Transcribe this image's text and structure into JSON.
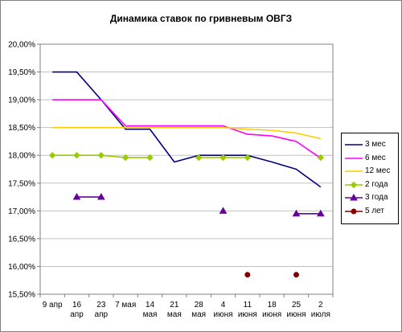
{
  "chart_data": {
    "type": "line",
    "title": "Динамика ставок по гривневым ОВГЗ",
    "xlabel": "",
    "ylabel": "",
    "ylim": [
      15.5,
      20.0
    ],
    "y_ticks": [
      "15,50%",
      "16,00%",
      "16,50%",
      "17,00%",
      "17,50%",
      "18,00%",
      "18,50%",
      "19,00%",
      "19,50%",
      "20,00%"
    ],
    "y_tick_values": [
      15.5,
      16.0,
      16.5,
      17.0,
      17.5,
      18.0,
      18.5,
      19.0,
      19.5,
      20.0
    ],
    "categories": [
      "9 апр",
      "16 апр",
      "23 апр",
      "7 мая",
      "14 мая",
      "21 мая",
      "28 мая",
      "4 июня",
      "11 июня",
      "18 июня",
      "25 июня",
      "2 июля"
    ],
    "category_lines": [
      [
        "9 апр"
      ],
      [
        "16",
        "апр"
      ],
      [
        "23",
        "апр"
      ],
      [
        "7 мая"
      ],
      [
        "14",
        "мая"
      ],
      [
        "21",
        "мая"
      ],
      [
        "28",
        "мая"
      ],
      [
        "4",
        "июня"
      ],
      [
        "11",
        "июня"
      ],
      [
        "18",
        "июня"
      ],
      [
        "25",
        "июня"
      ],
      [
        "2",
        "июля"
      ]
    ],
    "grid": "horizontal",
    "legend_position": "right",
    "series": [
      {
        "name": "3 мес",
        "color": "#000080",
        "marker": "none",
        "values": [
          19.5,
          19.5,
          19.0,
          18.47,
          18.47,
          17.88,
          18.0,
          18.0,
          18.0,
          17.88,
          17.75,
          17.43
        ]
      },
      {
        "name": "6 мес",
        "color": "#ff00ff",
        "marker": "none",
        "values": [
          19.0,
          19.0,
          19.0,
          18.53,
          18.53,
          18.53,
          18.53,
          18.53,
          18.38,
          18.35,
          18.25,
          17.95
        ]
      },
      {
        "name": "12 мес",
        "color": "#ffcc00",
        "marker": "none",
        "values": [
          18.5,
          18.5,
          18.5,
          18.5,
          18.5,
          18.5,
          18.5,
          18.5,
          18.47,
          18.45,
          18.4,
          18.3
        ]
      },
      {
        "name": "2 года",
        "color": "#99cc00",
        "marker": "diamond",
        "values": [
          18.0,
          18.0,
          18.0,
          17.96,
          17.96,
          null,
          17.96,
          17.96,
          17.96,
          null,
          null,
          17.96
        ]
      },
      {
        "name": "3 года",
        "color": "#660099",
        "marker": "triangle",
        "values": [
          null,
          17.25,
          17.25,
          null,
          null,
          null,
          null,
          17.0,
          null,
          null,
          16.95,
          16.95
        ]
      },
      {
        "name": "5 лет",
        "color": "#800000",
        "marker": "circle",
        "values": [
          null,
          null,
          null,
          null,
          null,
          null,
          null,
          null,
          15.85,
          null,
          15.85,
          null
        ]
      }
    ]
  }
}
